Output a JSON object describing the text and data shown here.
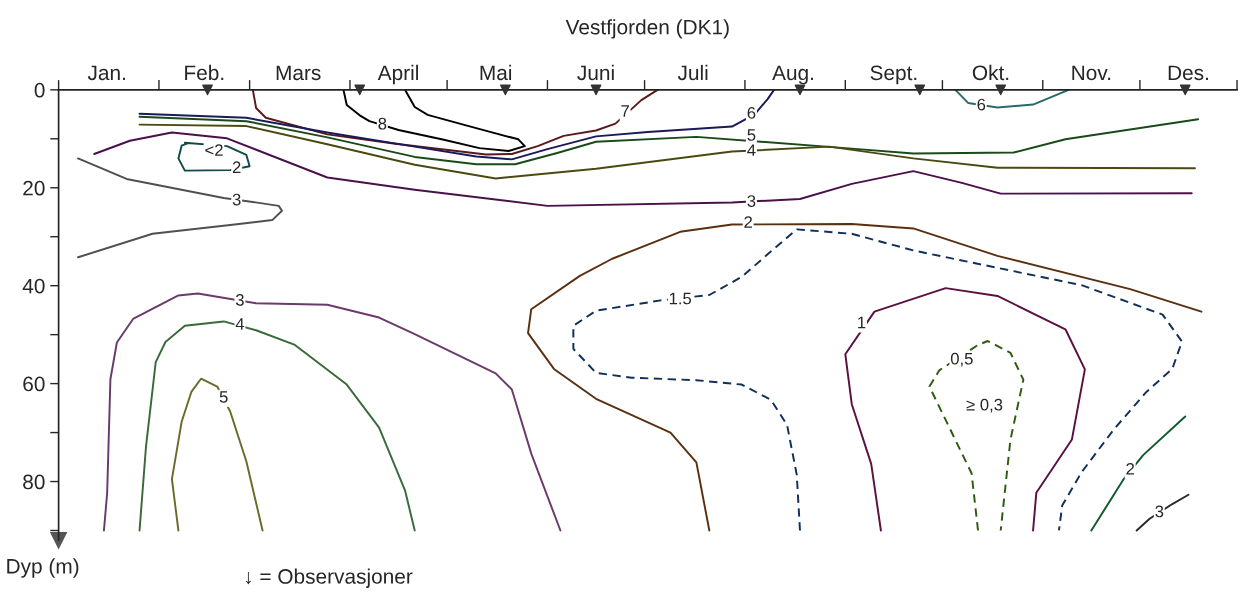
{
  "chart_data": {
    "type": "line",
    "title": "Vestfjorden (DK1)",
    "ylabel": "Dyp (m)",
    "xlim": [
      "--01-01",
      "--12-31"
    ],
    "ylim": [
      92,
      0
    ],
    "xticks": [
      {
        "value": "--01-01",
        "label": null
      },
      {
        "value": "--01-16",
        "label": "Jan."
      },
      {
        "value": "--02-01",
        "label": null
      },
      {
        "value": "--02-15",
        "label": "Feb."
      },
      {
        "value": "--03-01",
        "label": null
      },
      {
        "value": "--03-16",
        "label": "Mars"
      },
      {
        "value": "--04-01",
        "label": null
      },
      {
        "value": "--04-16",
        "label": "April"
      },
      {
        "value": "--05-01",
        "label": null
      },
      {
        "value": "--05-16",
        "label": "Mai"
      },
      {
        "value": "--06-01",
        "label": null
      },
      {
        "value": "--06-16",
        "label": "Juni"
      },
      {
        "value": "--07-01",
        "label": null
      },
      {
        "value": "--07-16",
        "label": "Juli"
      },
      {
        "value": "--08-01",
        "label": null
      },
      {
        "value": "--08-16",
        "label": "Aug."
      },
      {
        "value": "--09-01",
        "label": null
      },
      {
        "value": "--09-16",
        "label": "Sept."
      },
      {
        "value": "--10-01",
        "label": null
      },
      {
        "value": "--10-16",
        "label": "Okt."
      },
      {
        "value": "--11-01",
        "label": null
      },
      {
        "value": "--11-16",
        "label": "Nov."
      },
      {
        "value": "--12-01",
        "label": null
      },
      {
        "value": "--12-16",
        "label": "Des."
      },
      {
        "value": "--12-31",
        "label": null
      }
    ],
    "yticks": [
      0,
      {
        "value": 10,
        "label": null
      },
      20,
      {
        "value": 30,
        "label": null
      },
      40,
      {
        "value": 50,
        "label": null
      },
      60,
      {
        "value": 70,
        "label": null
      },
      80,
      {
        "value": 90,
        "label": null
      }
    ],
    "grid": false,
    "legend": false,
    "marker": "none",
    "series": [
      {
        "color": "#000000",
        "line_style": "solid",
        "x": [
          "--03-30",
          "--03-31",
          "--04-04",
          "--04-07",
          "--04-16",
          "--04-30",
          "--05-11",
          "--05-20",
          "--05-25",
          "--05-23",
          "--05-16",
          "--05-06",
          "--04-25",
          "--04-21",
          "--04-18"
        ],
        "values": [
          0,
          3.1,
          5.2,
          6.4,
          8.2,
          10.2,
          11.9,
          12.5,
          11.5,
          10.1,
          8.9,
          7.1,
          5.1,
          3.5,
          0
        ]
      },
      {
        "color": "#5a1a1a",
        "line_style": "solid",
        "x": [
          "--03-02",
          "--03-03",
          "--03-06",
          "--03-25",
          "--04-15",
          "--04-30",
          "--05-13",
          "--05-21",
          "--05-29",
          "--06-06",
          "--06-16",
          "--06-22",
          "--06-30",
          "--07-05"
        ],
        "values": [
          0,
          3.7,
          5.7,
          9.1,
          11.0,
          12.2,
          13.2,
          13.1,
          11.5,
          9.4,
          8.3,
          6.9,
          2.1,
          0
        ]
      },
      {
        "color": "#1a1a5a",
        "line_style": "solid",
        "x": [
          "--01-26",
          "--02-28",
          "--03-25",
          "--04-21",
          "--05-10",
          "--05-21",
          "--06-01",
          "--06-16",
          "--07-02",
          "--07-28",
          "--08-04",
          "--08-08",
          "--08-10"
        ],
        "values": [
          4.9,
          5.7,
          8.7,
          11.6,
          13.6,
          14.2,
          12.1,
          9.5,
          8.6,
          7.5,
          5.0,
          1.9,
          0
        ]
      },
      {
        "color": "#1a4a1a",
        "line_style": "solid",
        "x": [
          "--01-26",
          "--02-28",
          "--03-25",
          "--04-21",
          "--05-10",
          "--05-22",
          "--06-04",
          "--06-16",
          "--07-17",
          "--09-03",
          "--09-22",
          "--10-23",
          "--11-08",
          "--12-19"
        ],
        "values": [
          5.5,
          6.4,
          9.7,
          13.7,
          15.2,
          15.2,
          12.9,
          10.6,
          9.6,
          12.0,
          13.0,
          12.8,
          10.1,
          6.0
        ]
      },
      {
        "color": "#4a4a10",
        "line_style": "solid",
        "x": [
          "--01-26",
          "--02-28",
          "--03-25",
          "--04-21",
          "--05-16",
          "--06-16",
          "--07-28",
          "--08-27",
          "--09-22",
          "--10-18",
          "--12-18"
        ],
        "values": [
          7.1,
          7.4,
          11.1,
          15.3,
          18.1,
          16.1,
          12.6,
          11.6,
          14.0,
          15.9,
          16.0
        ]
      },
      {
        "color": "#4a104a",
        "line_style": "solid",
        "x": [
          "--01-12",
          "--01-23",
          "--02-05",
          "--02-22",
          "--03-25",
          "--04-21",
          "--06-01",
          "--07-28",
          "--08-18",
          "--09-03",
          "--09-22",
          "--10-07",
          "--10-19",
          "--12-17"
        ],
        "values": [
          13.1,
          10.4,
          8.7,
          9.9,
          17.9,
          20.4,
          23.7,
          23.0,
          22.3,
          19.2,
          16.6,
          19.0,
          21.2,
          21.1
        ]
      },
      {
        "color": "#104a4a",
        "line_style": "solid",
        "x": [
          "--02-09",
          "--02-22",
          "--02-28",
          "--03-01",
          "--02-23",
          "--02-09",
          "--02-07",
          "--02-08",
          "--02-10"
        ],
        "values": [
          10.8,
          11.5,
          13.3,
          15.6,
          16.4,
          16.5,
          14.0,
          11.4,
          10.9
        ]
      },
      {
        "color": "#505050",
        "line_style": "solid",
        "x": [
          "--01-07",
          "--01-22",
          "--02-21",
          "--03-02",
          "--03-10",
          "--03-11",
          "--03-08",
          "--02-23",
          "--01-30",
          "--01-07"
        ],
        "values": [
          14.0,
          18.2,
          22.1,
          22.9,
          23.7,
          24.7,
          26.6,
          27.6,
          29.4,
          34.2
        ]
      },
      {
        "color": "#5a3010",
        "line_style": "solid",
        "x": [
          "--07-21",
          "--07-17",
          "--07-09",
          "--06-16",
          "--06-03",
          "--05-26",
          "--05-27",
          "--06-11",
          "--06-21",
          "--07-12",
          "--07-28",
          "--09-03",
          "--09-22",
          "--10-18",
          "--11-28",
          "--12-20"
        ],
        "values": [
          90,
          76.1,
          70.0,
          63.1,
          57.0,
          49.7,
          44.8,
          38.0,
          34.5,
          29.0,
          27.5,
          27.4,
          28.3,
          33.9,
          40.7,
          45.3
        ]
      },
      {
        "color": "#10305a",
        "line_style": "dashed",
        "x": [
          "--08-18",
          "--08-17",
          "--08-14",
          "--08-09",
          "--07-31",
          "--07-17",
          "--06-27",
          "--06-16",
          "--06-09",
          "--06-09",
          "--06-16",
          "--07-06",
          "--07-21",
          "--07-31",
          "--08-08",
          "--08-17",
          "--09-03",
          "--09-22",
          "--11-13",
          "--12-08",
          "--12-14",
          "--12-11",
          "--12-03",
          "--11-23",
          "--11-13",
          "--11-07",
          "--11-06"
        ],
        "values": [
          90,
          78.6,
          68.4,
          63.3,
          60.2,
          59.3,
          58.8,
          57.8,
          52.9,
          48.2,
          45.1,
          43.0,
          41.9,
          38.2,
          33.6,
          28.5,
          29.4,
          32.8,
          39.9,
          45.9,
          51.4,
          57.0,
          61.7,
          69.3,
          78.1,
          84.9,
          90
        ]
      },
      {
        "color": "#5a1040",
        "line_style": "solid",
        "x": [
          "--09-12",
          "--09-09",
          "--09-03",
          "--09-01",
          "--09-10",
          "--10-02",
          "--10-18",
          "--11-08",
          "--11-14",
          "--11-10",
          "--10-30",
          "--10-29"
        ],
        "values": [
          90,
          76.4,
          64.2,
          54.0,
          45.3,
          40.5,
          42.1,
          48.9,
          57.1,
          71.4,
          82.3,
          90
        ]
      },
      {
        "color": "#305a10",
        "line_style": "dashed",
        "x": [
          "--10-12",
          "--10-10",
          "--09-30",
          "--09-27",
          "--09-30",
          "--10-12",
          "--10-15",
          "--10-22",
          "--10-26",
          "--10-22",
          "--10-19"
        ],
        "values": [
          90,
          78.3,
          64.7,
          60.6,
          57.3,
          52.1,
          51.3,
          53.7,
          59.2,
          71.5,
          90
        ]
      },
      {
        "color": "#105a30",
        "line_style": "solid",
        "x": [
          "--11-16",
          "--11-26",
          "--12-02",
          "--12-15"
        ],
        "values": [
          90,
          79.5,
          74.6,
          66.7
        ]
      },
      {
        "color": "#2a2a2a",
        "line_style": "solid",
        "x": [
          "--11-30",
          "--12-04",
          "--12-11",
          "--12-16"
        ],
        "values": [
          90,
          87.6,
          84.6,
          82.7
        ]
      },
      {
        "color": "#2a6a6a",
        "line_style": "solid",
        "x": [
          "--10-05",
          "--10-09",
          "--10-18",
          "--10-29",
          "--11-09"
        ],
        "values": [
          0,
          2.7,
          3.6,
          3.0,
          0
        ]
      },
      {
        "color": "#6a3a6a",
        "line_style": "solid",
        "x": [
          "--01-15",
          "--01-16",
          "--01-17",
          "--01-19",
          "--01-24",
          "--02-07",
          "--02-13",
          "--03-03",
          "--03-25",
          "--04-10",
          "--04-21",
          "--05-16",
          "--05-21",
          "--05-27",
          "--06-05"
        ],
        "values": [
          90,
          82.3,
          59.1,
          51.6,
          46.8,
          42.0,
          41.6,
          43.6,
          43.9,
          46.5,
          49.9,
          57.9,
          61.2,
          74.3,
          90
        ]
      },
      {
        "color": "#3a6a3a",
        "line_style": "solid",
        "x": [
          "--01-26",
          "--01-28",
          "--01-31",
          "--02-03",
          "--02-09",
          "--02-21",
          "--03-03",
          "--03-15",
          "--03-31",
          "--04-10",
          "--04-18",
          "--04-21"
        ],
        "values": [
          90,
          72.8,
          55.6,
          51.5,
          48.2,
          47.3,
          49.1,
          52.1,
          60.2,
          69.0,
          81.8,
          90
        ]
      },
      {
        "color": "#6a6a2a",
        "line_style": "solid",
        "x": [
          "--02-07",
          "--02-05",
          "--02-08",
          "--02-11",
          "--02-14",
          "--02-19",
          "--02-23",
          "--02-28",
          "--03-05"
        ],
        "values": [
          90,
          79.5,
          67.8,
          61.7,
          59.0,
          60.6,
          65.7,
          75.9,
          90
        ]
      },
      {
        "type": "scatter",
        "marker": "triangle",
        "color": "#333333",
        "x": [
          "--02-16",
          "--04-04",
          "--05-19",
          "--06-16",
          "--08-18",
          "--09-24",
          "--10-19",
          "--12-15"
        ],
        "values": [
          0,
          0,
          0,
          0,
          0,
          0,
          0,
          0
        ]
      }
    ],
    "annotations": [
      {
        "text": "8",
        "x": "--04-11",
        "y": 7.2
      },
      {
        "text": "7",
        "x": "--06-25",
        "y": 4.6
      },
      {
        "text": "6",
        "x": "--08-03",
        "y": 5.0
      },
      {
        "text": "5",
        "x": "--08-03",
        "y": 9.5
      },
      {
        "text": "4",
        "x": "--08-03",
        "y": 12.6
      },
      {
        "text": "3",
        "x": "--08-03",
        "y": 23.0
      },
      {
        "text": "2",
        "x": "--08-02",
        "y": 27.3
      },
      {
        "text": "<2",
        "x": "--02-18",
        "y": 12.6
      },
      {
        "text": "2",
        "x": "--02-25",
        "y": 16.1
      },
      {
        "text": "3",
        "x": "--02-25",
        "y": 22.7
      },
      {
        "text": "1.5",
        "x": "--07-12",
        "y": 42.9
      },
      {
        "text": "1",
        "x": "--09-06",
        "y": 47.8
      },
      {
        "text": "0,5",
        "x": "--10-07",
        "y": 55.2
      },
      {
        "text": "≥ 0,3",
        "x": "--10-14",
        "y": 64.6
      },
      {
        "text": "2",
        "x": "--11-28",
        "y": 77.7
      },
      {
        "text": "3",
        "x": "--12-07",
        "y": 86.4
      },
      {
        "text": "6",
        "x": "--10-13",
        "y": 3.3
      },
      {
        "text": "3",
        "x": "--02-26",
        "y": 43.2
      },
      {
        "text": "4",
        "x": "--02-26",
        "y": 48.1
      },
      {
        "text": "5",
        "x": "--02-21",
        "y": 63.0
      },
      "↓ = Observasjoner"
    ]
  }
}
